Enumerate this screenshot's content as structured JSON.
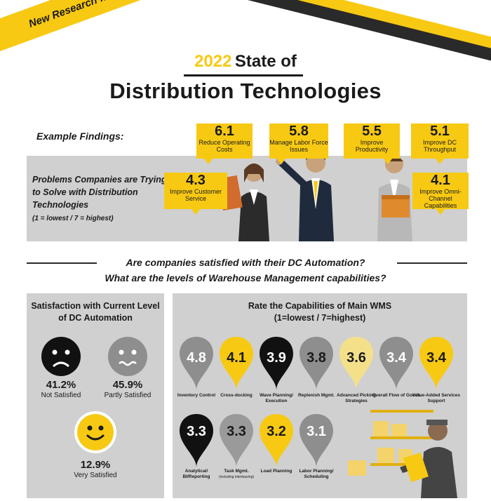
{
  "banner": {
    "text": "New Research from Softeon"
  },
  "title": {
    "year": "2022",
    "rest": "State of",
    "main": "Distribution Technologies"
  },
  "findings": {
    "heading": "Example Findings:",
    "problems_text": "Problems Companies are Trying to Solve with Distribution Technologies",
    "scale": "(1 = lowest / 7 = highest)",
    "items": [
      {
        "value": "6.1",
        "label": "Reduce Operating Costs"
      },
      {
        "value": "5.8",
        "label": "Manage Labor Force Issues"
      },
      {
        "value": "5.5",
        "label": "Improve Productivity"
      },
      {
        "value": "5.1",
        "label": "Improve DC Throughput"
      },
      {
        "value": "4.3",
        "label": "Improve Customer Service"
      },
      {
        "value": "4.1",
        "label": "Improve Omni-Channel Capabilities"
      }
    ]
  },
  "questions": {
    "q1": "Are companies satisfied with their DC Automation?",
    "q2": "What are the levels of Warehouse Management capabilities?"
  },
  "satisfaction": {
    "title": "Satisfaction with Current Level of DC Automation",
    "items": [
      {
        "pct": "41.2%",
        "label": "Not Satisfied",
        "face": "sad-face-icon",
        "color": "#111111"
      },
      {
        "pct": "45.9%",
        "label": "Partly Satisfied",
        "face": "neutral-face-icon",
        "color": "#8e8e8e"
      },
      {
        "pct": "12.9%",
        "label": "Very Satisfied",
        "face": "happy-face-icon",
        "color": "#f7c913"
      }
    ]
  },
  "wms": {
    "title": "Rate the Capabilities of Main WMS",
    "scale": "(1=lowest / 7=highest)",
    "items": [
      {
        "value": "4.8",
        "label": "Inventory Control",
        "color": "#8e8e8e"
      },
      {
        "value": "4.1",
        "label": "Cross-docking",
        "color": "#f7c913"
      },
      {
        "value": "3.9",
        "label": "Wave Planning/ Execution",
        "color": "#111111"
      },
      {
        "value": "3.8",
        "label": "Replenish Mgmt.",
        "color": "#8e8e8e"
      },
      {
        "value": "3.6",
        "label": "Advanced Picking Strategies",
        "color": "#f5e08a"
      },
      {
        "value": "3.4",
        "label": "Overall Flow of Goods",
        "color": "#8e8e8e"
      },
      {
        "value": "3.4",
        "label": "Value-Added Services Support",
        "color": "#f7c913"
      },
      {
        "value": "3.3",
        "label": "Analytical/ BI/Reporting",
        "color": "#111111"
      },
      {
        "value": "3.3",
        "label": "Task Mgmt.",
        "sub": "(including interleaving)",
        "color": "#9a9a9a"
      },
      {
        "value": "3.2",
        "label": "Load Planning",
        "color": "#f7c913"
      },
      {
        "value": "3.1",
        "label": "Labor Planning/ Scheduling",
        "color": "#8e8e8e"
      }
    ]
  }
}
